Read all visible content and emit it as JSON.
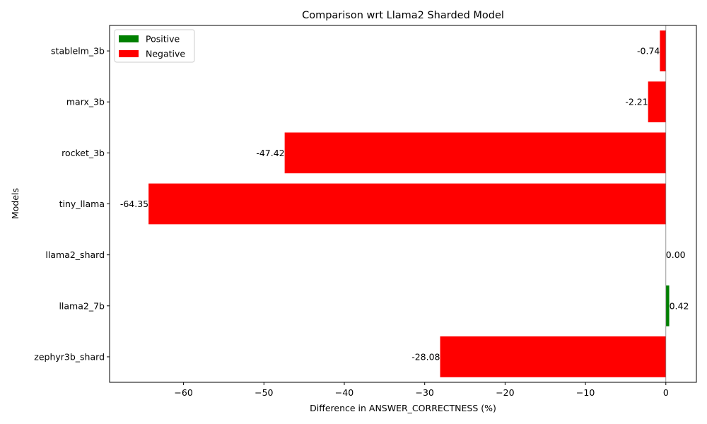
{
  "chart_data": {
    "type": "bar",
    "orientation": "horizontal",
    "title": "Comparison wrt Llama2 Sharded Model",
    "xlabel": "Difference in ANSWER_CORRECTNESS (%)",
    "ylabel": "Models",
    "categories": [
      "zephyr3b_shard",
      "llama2_7b",
      "llama2_shard",
      "tiny_llama",
      "rocket_3b",
      "marx_3b",
      "stablelm_3b"
    ],
    "values": [
      -28.08,
      0.42,
      0.0,
      -64.35,
      -47.42,
      -2.21,
      -0.74
    ],
    "value_labels": [
      "-28.08",
      "0.42",
      "0.00",
      "-64.35",
      "-47.42",
      "-2.21",
      "-0.74"
    ],
    "xlim": [
      -69.2,
      3.8
    ],
    "xticks": [
      -60,
      -50,
      -40,
      -30,
      -20,
      -10,
      0
    ],
    "xtick_labels": [
      "−60",
      "−50",
      "−40",
      "−30",
      "−20",
      "−10",
      "0"
    ],
    "grid": false,
    "legend": {
      "position": "top-left",
      "items": [
        {
          "label": "Positive",
          "color": "#008000"
        },
        {
          "label": "Negative",
          "color": "#ff0000"
        }
      ]
    },
    "colors": {
      "positive": "#008000",
      "negative": "#ff0000",
      "zero_line": "#808080"
    }
  }
}
